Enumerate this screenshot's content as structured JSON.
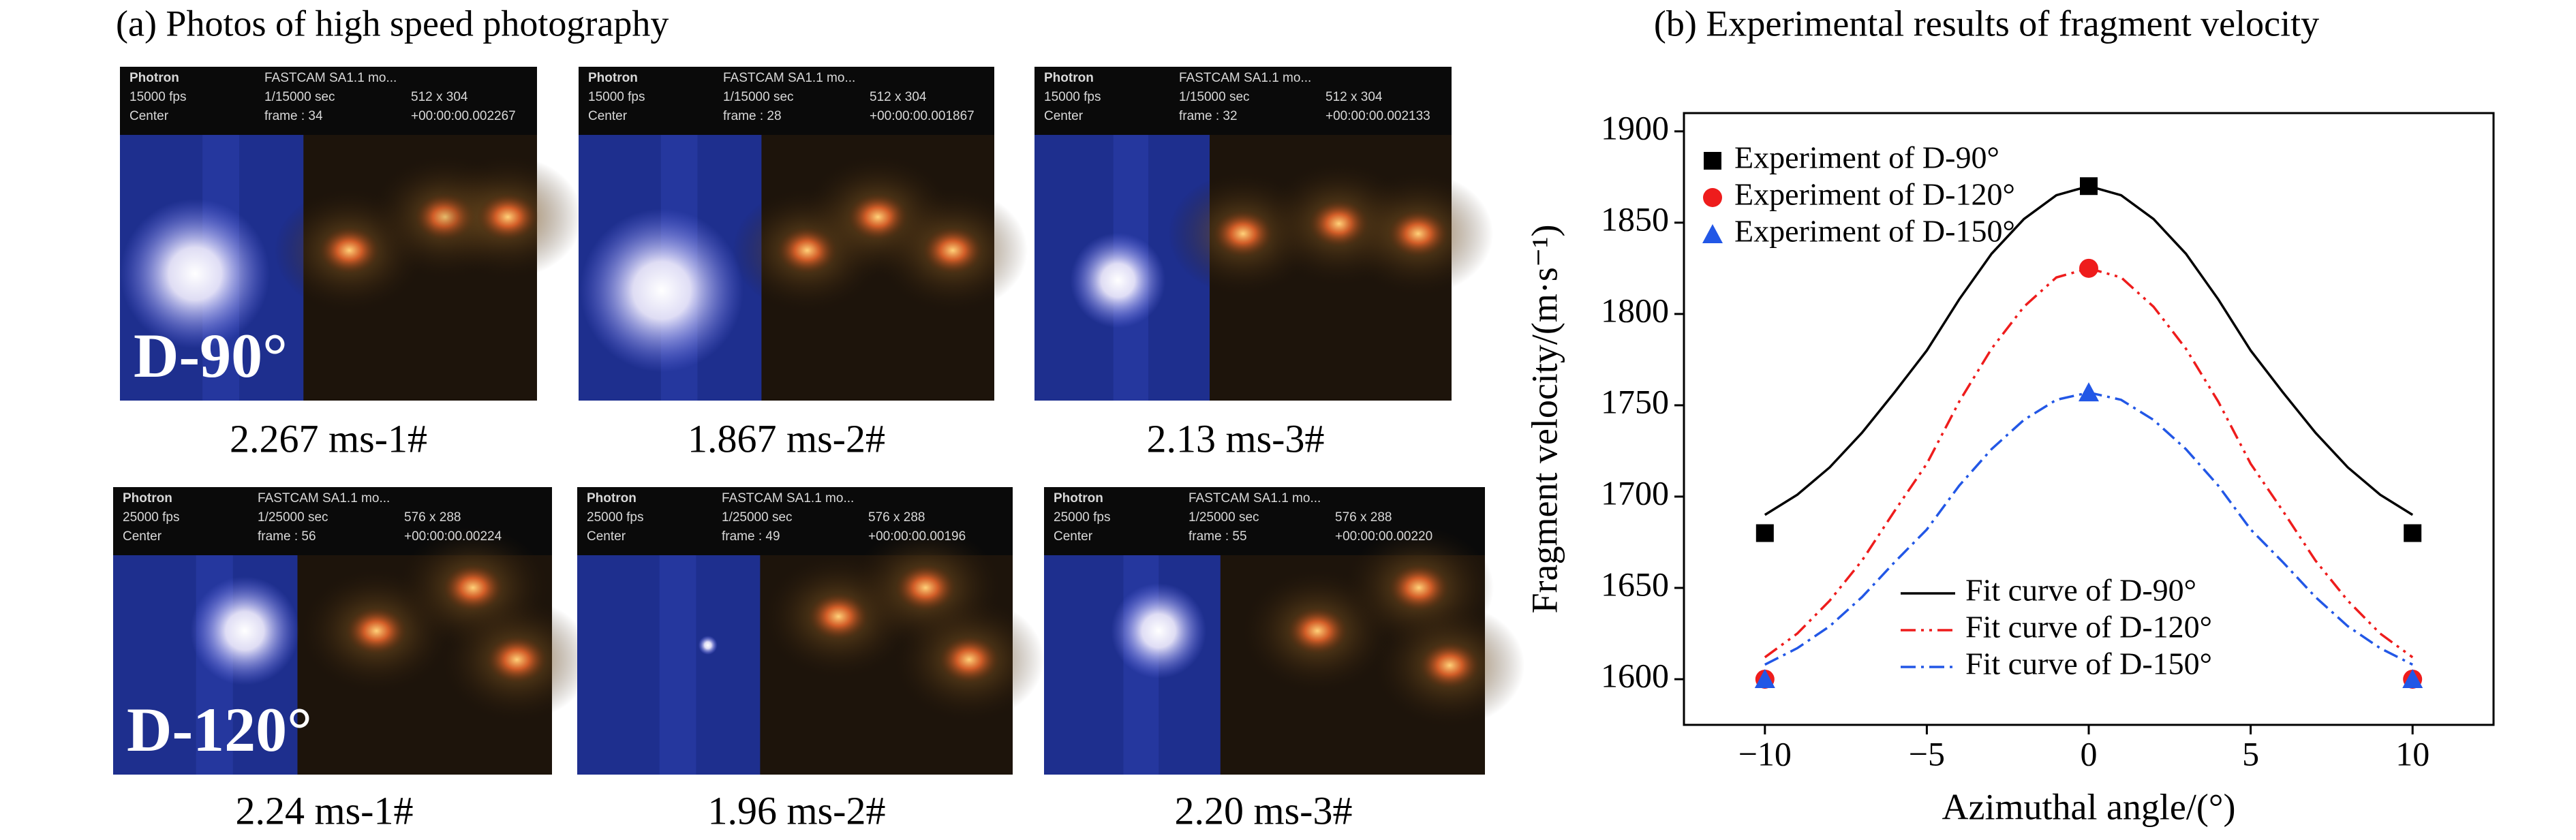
{
  "panel_a": {
    "title": "(a) Photos of high speed photography",
    "photos": [
      {
        "hud": {
          "camera": "Photron",
          "model": "FASTCAM SA1.1 mo...",
          "rate": "15000 fps",
          "shutter": "1/15000 sec",
          "size": "512 x 304",
          "trigger": "Center",
          "frame": "frame : 34",
          "time": "+00:00:00.002267"
        },
        "label": "D-90°",
        "caption": "2.267 ms-1#"
      },
      {
        "hud": {
          "camera": "Photron",
          "model": "FASTCAM SA1.1 mo...",
          "rate": "15000 fps",
          "shutter": "1/15000 sec",
          "size": "512 x 304",
          "trigger": "Center",
          "frame": "frame : 28",
          "time": "+00:00:00.001867"
        },
        "caption": "1.867 ms-2#"
      },
      {
        "hud": {
          "camera": "Photron",
          "model": "FASTCAM SA1.1 mo...",
          "rate": "15000 fps",
          "shutter": "1/15000 sec",
          "size": "512 x 304",
          "trigger": "Center",
          "frame": "frame : 32",
          "time": "+00:00:00.002133"
        },
        "caption": "2.13 ms-3#"
      },
      {
        "hud": {
          "camera": "Photron",
          "model": "FASTCAM SA1.1 mo...",
          "rate": "25000 fps",
          "shutter": "1/25000 sec",
          "size": "576 x 288",
          "trigger": "Center",
          "frame": "frame : 56",
          "time": "+00:00:00.00224"
        },
        "label": "D-120°",
        "caption": "2.24 ms-1#"
      },
      {
        "hud": {
          "camera": "Photron",
          "model": "FASTCAM SA1.1 mo...",
          "rate": "25000 fps",
          "shutter": "1/25000 sec",
          "size": "576 x 288",
          "trigger": "Center",
          "frame": "frame : 49",
          "time": "+00:00:00.00196"
        },
        "caption": "1.96 ms-2#"
      },
      {
        "hud": {
          "camera": "Photron",
          "model": "FASTCAM SA1.1 mo...",
          "rate": "25000 fps",
          "shutter": "1/25000 sec",
          "size": "576 x 288",
          "trigger": "Center",
          "frame": "frame : 55",
          "time": "+00:00:00.00220"
        },
        "caption": "2.20 ms-3#"
      }
    ]
  },
  "chart_data": {
    "type": "scatter-fit",
    "title": "(b) Experimental results of fragment velocity",
    "x_label": "Azimuthal angle/(°)",
    "y_label": "Fragment velocity/(m·s⁻¹)",
    "xlim": [
      -12.5,
      12.5
    ],
    "ylim": [
      1575,
      1910
    ],
    "xticks": [
      {
        "value": -10,
        "label": "−10"
      },
      {
        "value": -5,
        "label": "−5"
      },
      0,
      5,
      10
    ],
    "yticks": [
      1600,
      1650,
      1700,
      1750,
      1800,
      1850,
      1900
    ],
    "series": [
      {
        "name": "Experiment of D-90°",
        "color": "#000000",
        "marker": "square",
        "legend": "upper left",
        "x": [
          -10,
          0,
          10
        ],
        "values": [
          1680,
          1870,
          1680
        ]
      },
      {
        "name": "Experiment of D-120°",
        "color": "#ee1c1c",
        "marker": "circle",
        "legend": "upper left",
        "x": [
          -10,
          0,
          10
        ],
        "values": [
          1600,
          1825,
          1600
        ]
      },
      {
        "name": "Experiment of D-150°",
        "color": "#2257e6",
        "marker": "triangle",
        "legend": "upper left",
        "x": [
          -10,
          0,
          10
        ],
        "values": [
          1600,
          1757,
          1600
        ]
      },
      {
        "name": "Fit curve of D-90°",
        "color": "#000000",
        "dash": "solid",
        "legend": "lower center",
        "x": [
          -10,
          -9,
          -8,
          -7,
          -6,
          -5,
          -4,
          -3,
          -2,
          -1,
          0,
          1,
          2,
          3,
          4,
          5,
          6,
          7,
          8,
          9,
          10
        ],
        "values": [
          1690,
          1701,
          1716,
          1735,
          1757,
          1780,
          1808,
          1833,
          1852,
          1865,
          1870,
          1865,
          1852,
          1833,
          1808,
          1780,
          1757,
          1735,
          1716,
          1701,
          1690
        ]
      },
      {
        "name": "Fit curve of D-120°",
        "color": "#ee1c1c",
        "dash": "dash-dot-dot",
        "legend": "lower center",
        "x": [
          -10,
          -9,
          -8,
          -7,
          -6,
          -5,
          -4,
          -3,
          -2,
          -1,
          0,
          1,
          2,
          3,
          4,
          5,
          6,
          7,
          8,
          9,
          10
        ],
        "values": [
          1612,
          1625,
          1643,
          1665,
          1692,
          1718,
          1752,
          1781,
          1804,
          1820,
          1825,
          1820,
          1804,
          1781,
          1752,
          1718,
          1692,
          1665,
          1643,
          1625,
          1612
        ]
      },
      {
        "name": "Fit curve of D-150°",
        "color": "#2257e6",
        "dash": "dash-dot",
        "legend": "lower center",
        "x": [
          -10,
          -9,
          -8,
          -7,
          -6,
          -5,
          -4,
          -3,
          -2,
          -1,
          0,
          1,
          2,
          3,
          4,
          5,
          6,
          7,
          8,
          9,
          10
        ],
        "values": [
          1608,
          1617,
          1629,
          1645,
          1664,
          1682,
          1706,
          1726,
          1742,
          1753,
          1757,
          1753,
          1742,
          1726,
          1706,
          1682,
          1664,
          1645,
          1629,
          1617,
          1608
        ]
      }
    ]
  }
}
